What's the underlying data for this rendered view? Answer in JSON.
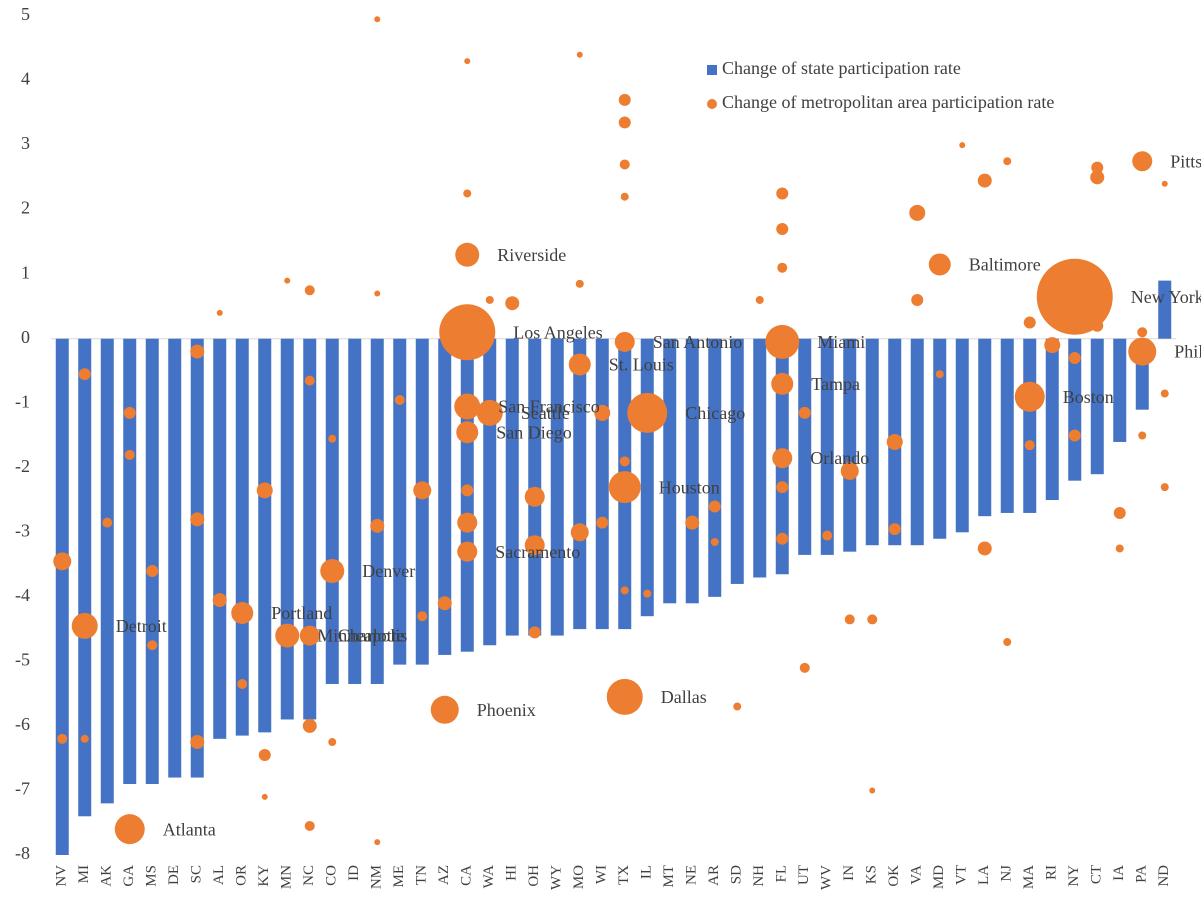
{
  "chart_data": {
    "type": "bar",
    "categories": [
      "NV",
      "MI",
      "AK",
      "GA",
      "MS",
      "DE",
      "SC",
      "AL",
      "OR",
      "KY",
      "MN",
      "NC",
      "CO",
      "ID",
      "NM",
      "ME",
      "TN",
      "AZ",
      "CA",
      "WA",
      "HI",
      "OH",
      "WY",
      "MO",
      "WI",
      "TX",
      "IL",
      "MT",
      "NE",
      "AR",
      "SD",
      "NH",
      "FL",
      "UT",
      "WV",
      "IN",
      "KS",
      "OK",
      "VA",
      "MD",
      "VT",
      "LA",
      "NJ",
      "MA",
      "RI",
      "NY",
      "CT",
      "IA",
      "PA",
      "ND"
    ],
    "series": [
      {
        "name": "Change of state participation rate",
        "type": "bar",
        "color": "#4472c4",
        "values": [
          -8,
          -7.4,
          -7.2,
          -6.9,
          -6.9,
          -6.8,
          -6.8,
          -6.2,
          -6.15,
          -6.1,
          -5.9,
          -5.9,
          -5.35,
          -5.35,
          -5.35,
          -5.05,
          -5.05,
          -4.9,
          -4.85,
          -4.75,
          -4.6,
          -4.6,
          -4.6,
          -4.5,
          -4.5,
          -4.5,
          -4.3,
          -4.1,
          -4.1,
          -4.0,
          -3.8,
          -3.7,
          -3.65,
          -3.35,
          -3.35,
          -3.3,
          -3.2,
          -3.2,
          -3.2,
          -3.1,
          -3.0,
          -2.75,
          -2.7,
          -2.7,
          -2.5,
          -2.2,
          -2.1,
          -1.6,
          -1.1,
          0.9
        ]
      },
      {
        "name": "Change of metropolitan area participation rate",
        "type": "scatter",
        "color": "#ed7d31",
        "x": [
          "GA",
          "MI",
          "OR",
          "CO",
          "MN",
          "NC",
          "AZ",
          "CA",
          "CA",
          "CA",
          "CA",
          "CA",
          "WA",
          "MO",
          "TX",
          "TX",
          "TX",
          "IL",
          "FL",
          "FL",
          "FL",
          "MD",
          "NY",
          "MA",
          "PA",
          "PA",
          "NV",
          "NV",
          "MI",
          "MI",
          "AK",
          "GA",
          "GA",
          "MS",
          "MS",
          "SC",
          "SC",
          "SC",
          "AL",
          "AL",
          "OR",
          "KY",
          "KY",
          "KY",
          "MN",
          "NC",
          "NC",
          "NC",
          "NC",
          "CO",
          "CO",
          "NM",
          "NM",
          "NM",
          "NM",
          "ME",
          "TN",
          "TN",
          "AZ",
          "CA",
          "CA",
          "CA",
          "CA",
          "WA",
          "HI",
          "OH",
          "OH",
          "OH",
          "MO",
          "MO",
          "MO",
          "WI",
          "WI",
          "TX",
          "TX",
          "TX",
          "TX",
          "TX",
          "TX",
          "IL",
          "NE",
          "AR",
          "AR",
          "SD",
          "NH",
          "FL",
          "FL",
          "FL",
          "FL",
          "FL",
          "UT",
          "UT",
          "WV",
          "IN",
          "IN",
          "KS",
          "KS",
          "OK",
          "OK",
          "VA",
          "VA",
          "MD",
          "VT",
          "LA",
          "LA",
          "NJ",
          "NJ",
          "MA",
          "MA",
          "RI",
          "NY",
          "NY",
          "CT",
          "CT",
          "CT",
          "IA",
          "IA",
          "PA",
          "PA",
          "ND",
          "ND",
          "ND"
        ],
        "values": [
          -7.6,
          -4.45,
          -4.25,
          -3.6,
          -4.6,
          -4.6,
          -5.75,
          1.3,
          0.1,
          -1.05,
          -1.45,
          -3.3,
          -1.15,
          -0.4,
          -5.55,
          -2.3,
          -0.05,
          -1.15,
          -0.05,
          -0.7,
          -1.85,
          1.15,
          0.65,
          -0.9,
          -0.2,
          2.75,
          -3.45,
          -6.2,
          -0.55,
          -6.2,
          -2.85,
          -1.15,
          -1.8,
          -3.6,
          -4.75,
          -0.2,
          -2.8,
          -6.25,
          -4.05,
          0.4,
          -5.35,
          -2.35,
          -6.45,
          -7.1,
          0.9,
          0.75,
          -6.0,
          -7.55,
          -0.65,
          -6.25,
          -1.55,
          -2.9,
          4.95,
          0.7,
          -7.8,
          -0.95,
          -2.35,
          -4.3,
          -4.1,
          -2.85,
          -2.35,
          2.25,
          4.3,
          0.6,
          0.55,
          -2.45,
          -3.2,
          -4.55,
          -3.0,
          4.4,
          0.85,
          -1.15,
          -2.85,
          3.7,
          3.35,
          2.7,
          2.2,
          -1.9,
          -3.9,
          -3.95,
          -2.85,
          -2.6,
          -3.15,
          -5.7,
          0.6,
          2.25,
          1.7,
          1.1,
          -2.3,
          -3.1,
          -5.1,
          -1.15,
          -3.05,
          -2.05,
          -4.35,
          -4.35,
          -7.0,
          -1.6,
          -2.95,
          1.95,
          0.6,
          -0.55,
          3.0,
          2.45,
          -3.25,
          2.75,
          -4.7,
          -1.65,
          0.25,
          -0.1,
          -1.5,
          -0.3,
          2.5,
          2.65,
          0.2,
          -2.7,
          -3.25,
          -1.5,
          0.1,
          -0.85,
          -2.3,
          2.4
        ],
        "sizes": [
          15,
          13,
          11,
          12,
          12,
          10,
          14,
          12,
          28,
          13,
          11,
          10,
          13,
          11,
          18,
          16,
          10,
          20,
          17,
          11,
          10,
          11,
          38,
          15,
          14,
          10,
          9,
          5,
          6,
          4,
          5,
          6,
          5,
          6,
          5,
          7,
          7,
          7,
          7,
          3,
          5,
          8,
          6,
          3,
          3,
          5,
          7,
          5,
          5,
          4,
          4,
          7,
          3,
          3,
          3,
          5,
          9,
          5,
          7,
          10,
          6,
          4,
          3,
          4,
          7,
          10,
          10,
          6,
          9,
          3,
          4,
          8,
          6,
          6,
          6,
          5,
          4,
          5,
          4,
          4,
          7,
          6,
          4,
          4,
          4,
          6,
          6,
          5,
          6,
          6,
          5,
          6,
          5,
          9,
          5,
          5,
          3,
          8,
          6,
          8,
          6,
          4,
          3,
          7,
          7,
          4,
          4,
          5,
          6,
          8,
          6,
          6,
          7,
          6,
          6,
          6,
          4,
          4,
          5,
          4,
          4,
          3
        ],
        "labels": [
          "Atlanta",
          "Detroit",
          "Portland",
          "Denver",
          "Minneapolis",
          "Charlotte",
          "Phoenix",
          "Riverside",
          "Los Angeles",
          "San Francisco",
          "San Diego",
          "Sacramento",
          "Seattle",
          "St. Louis",
          "Dallas",
          "Houston",
          "San Antonio",
          "Chicago",
          "Miami",
          "Tampa",
          "Orlando",
          "Baltimore",
          "New York",
          "Boston",
          "Philadelphia",
          "Pittsburgh",
          null,
          null,
          null,
          null,
          null,
          null,
          null,
          null,
          null,
          null,
          null,
          null,
          null,
          null,
          null,
          null,
          null,
          null,
          null,
          null,
          null,
          null,
          null,
          null,
          null,
          null,
          null,
          null,
          null,
          null,
          null,
          null,
          null,
          null,
          null,
          null,
          null,
          null,
          null,
          null,
          null,
          null,
          null,
          null,
          null,
          null,
          null,
          null,
          null,
          null,
          null,
          null,
          null,
          null,
          null,
          null,
          null,
          null,
          null,
          null,
          null,
          null,
          null,
          null,
          null,
          null,
          null,
          null,
          null,
          null,
          null,
          null,
          null,
          null,
          null,
          null,
          null,
          null,
          null,
          null,
          null,
          null,
          null,
          null,
          null,
          null,
          null,
          null,
          null,
          null
        ]
      }
    ],
    "ylim": [
      -8,
      5
    ],
    "yticks": [
      -8,
      -7,
      -6,
      -5,
      -4,
      -3,
      -2,
      -1,
      0,
      1,
      2,
      3,
      4,
      5
    ],
    "legend": "top-right"
  }
}
